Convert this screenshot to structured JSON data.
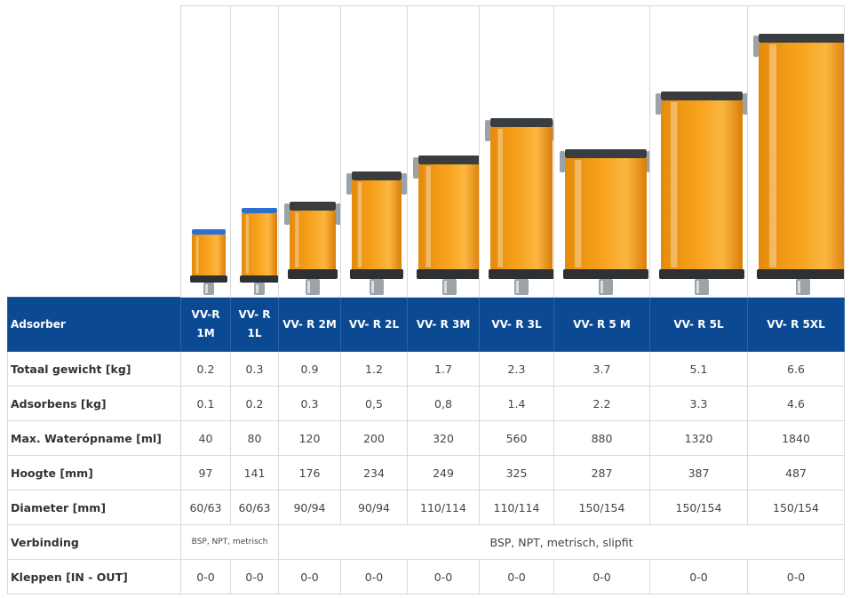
{
  "header_label": "Adsorber",
  "models": [
    {
      "name_line1": "VV-R",
      "name_line2": "1M",
      "cap": "blue",
      "gewicht": "0.2",
      "adsorbens": "0.1",
      "water": "40",
      "hoogte": "97",
      "diameter": "60/63",
      "kleppen": "0-0"
    },
    {
      "name_line1": "VV- R",
      "name_line2": "1L",
      "cap": "blue",
      "gewicht": "0.3",
      "adsorbens": "0.2",
      "water": "80",
      "hoogte": "141",
      "diameter": "60/63",
      "kleppen": "0-0"
    },
    {
      "name_line1": "VV- R 2M",
      "name_line2": "",
      "cap": "clamp",
      "gewicht": "0.9",
      "adsorbens": "0.3",
      "water": "120",
      "hoogte": "176",
      "diameter": "90/94",
      "kleppen": "0-0"
    },
    {
      "name_line1": "VV- R 2L",
      "name_line2": "",
      "cap": "clamp",
      "gewicht": "1.2",
      "adsorbens": "0,5",
      "water": "200",
      "hoogte": "234",
      "diameter": "90/94",
      "kleppen": "0-0"
    },
    {
      "name_line1": "VV- R 3M",
      "name_line2": "",
      "cap": "clamp",
      "gewicht": "1.7",
      "adsorbens": "0,8",
      "water": "320",
      "hoogte": "249",
      "diameter": "110/114",
      "kleppen": "0-0"
    },
    {
      "name_line1": "VV- R 3L",
      "name_line2": "",
      "cap": "clamp",
      "gewicht": "2.3",
      "adsorbens": "1.4",
      "water": "560",
      "hoogte": "325",
      "diameter": "110/114",
      "kleppen": "0-0"
    },
    {
      "name_line1": "VV- R 5 M",
      "name_line2": "",
      "cap": "clamp",
      "gewicht": "3.7",
      "adsorbens": "2.2",
      "water": "880",
      "hoogte": "287",
      "diameter": "150/154",
      "kleppen": "0-0"
    },
    {
      "name_line1": "VV- R 5L",
      "name_line2": "",
      "cap": "clamp",
      "gewicht": "5.1",
      "adsorbens": "3.3",
      "water": "1320",
      "hoogte": "387",
      "diameter": "150/154",
      "kleppen": "0-0"
    },
    {
      "name_line1": "VV- R 5XL",
      "name_line2": "",
      "cap": "clamp",
      "gewicht": "6.6",
      "adsorbens": "4.6",
      "water": "1840",
      "hoogte": "487",
      "diameter": "150/154",
      "kleppen": "0-0"
    }
  ],
  "rows": {
    "gewicht": "Totaal gewicht  [kg]",
    "adsorbens": "Adsorbens [kg]",
    "water": "Max. Waterópname [ml]",
    "hoogte": "Hoogte  [mm]",
    "diameter": "Diameter [mm]",
    "verbinding": "Verbinding",
    "kleppen": "Kleppen [IN - OUT]"
  },
  "verbinding_small": "BSP, NPT, metrisch",
  "verbinding_large": "BSP, NPT, metrisch, slipfit",
  "colors": {
    "header_bg": "#0b4a92",
    "granulate": "#f7a21c",
    "cap_blue": "#2f6fd0",
    "metal": "#9aa3aa"
  }
}
